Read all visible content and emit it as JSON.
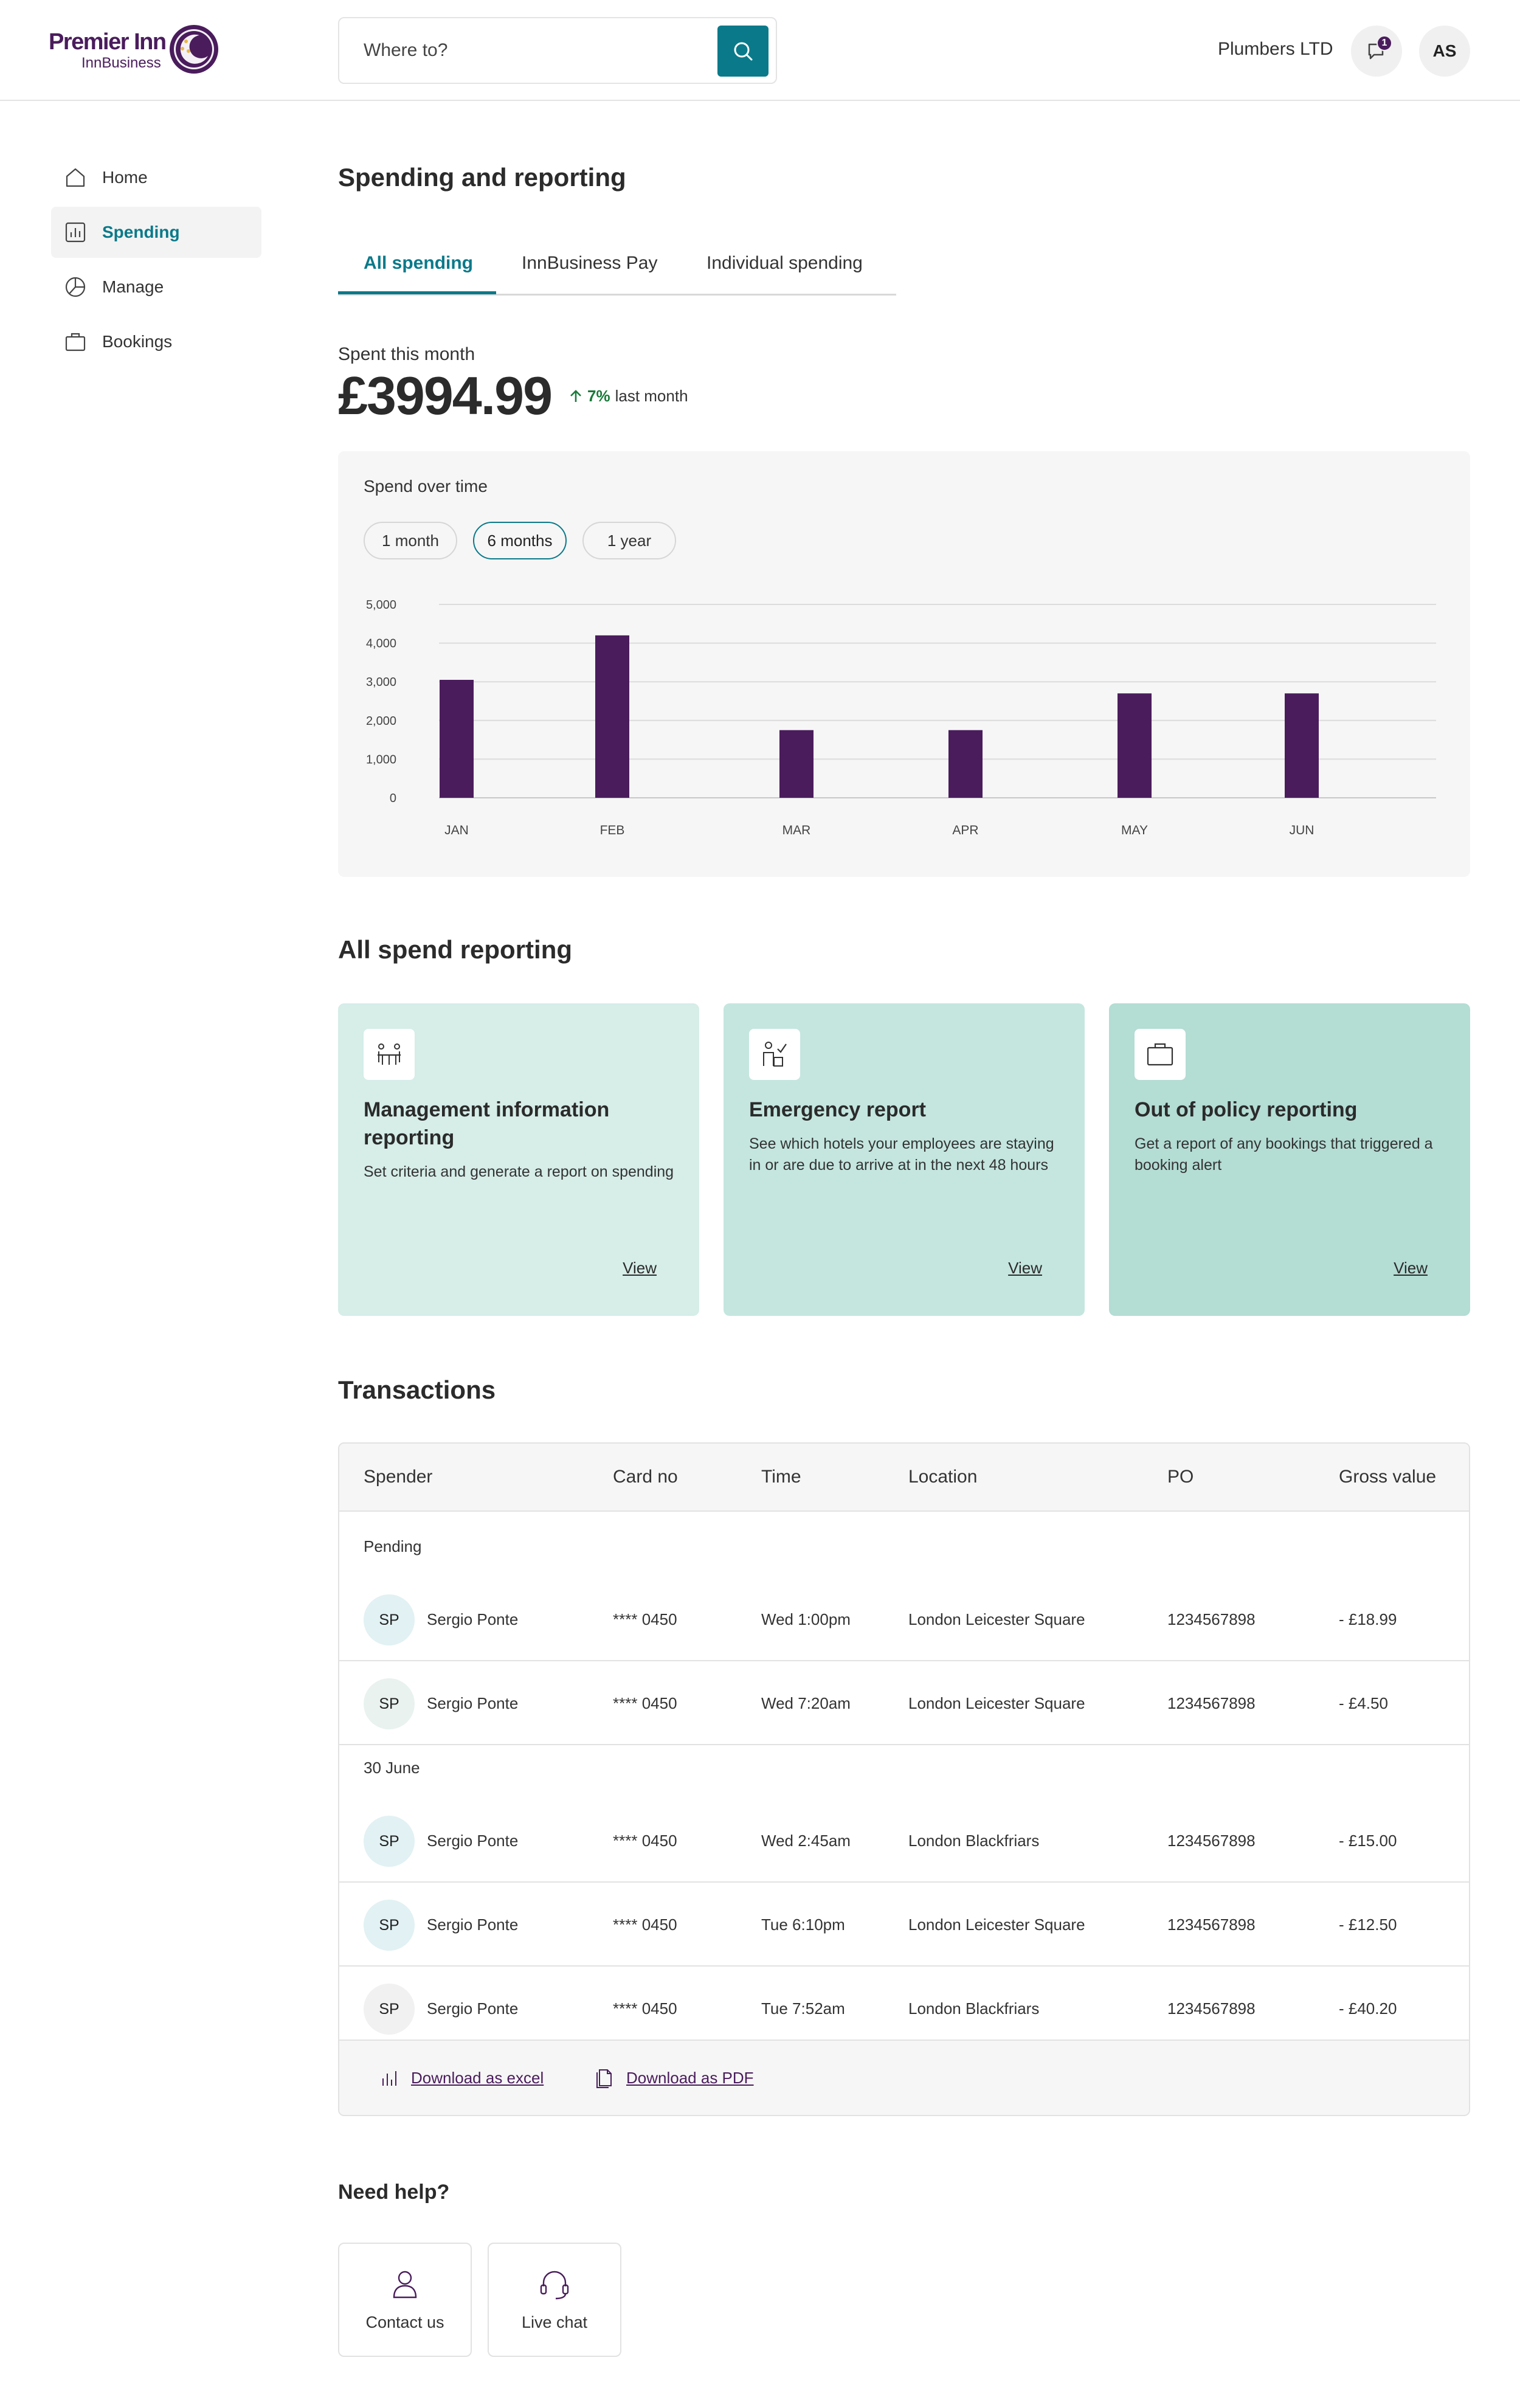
{
  "brand": {
    "name": "Premier Inn",
    "sub": "InnBusiness"
  },
  "search": {
    "placeholder": "Where to?"
  },
  "header": {
    "company": "Plumbers LTD",
    "message_count": "1",
    "user_initials": "AS"
  },
  "sidebar": {
    "items": [
      {
        "label": "Home",
        "icon": "home-icon"
      },
      {
        "label": "Spending",
        "icon": "bar-chart-icon",
        "active": true
      },
      {
        "label": "Manage",
        "icon": "pie-chart-icon"
      },
      {
        "label": "Bookings",
        "icon": "briefcase-icon"
      }
    ]
  },
  "page": {
    "title": "Spending and reporting"
  },
  "tabs": [
    {
      "label": "All spending",
      "active": true
    },
    {
      "label": "InnBusiness Pay"
    },
    {
      "label": "Individual spending"
    }
  ],
  "summary": {
    "label": "Spent this month",
    "amount": "£3994.99",
    "change_pct": "7%",
    "change_text": "last month"
  },
  "chart": {
    "title": "Spend over time",
    "ranges": [
      {
        "label": "1 month"
      },
      {
        "label": "6 months",
        "active": true
      },
      {
        "label": "1 year"
      }
    ],
    "bar_color": "#4a1c5c"
  },
  "chart_data": {
    "type": "bar",
    "title": "Spend over time",
    "categories": [
      "JAN",
      "FEB",
      "MAR",
      "APR",
      "MAY",
      "JUN"
    ],
    "values": [
      3050,
      4200,
      1750,
      1750,
      2700,
      2700
    ],
    "yticks": [
      "0",
      "1,000",
      "2,000",
      "3,000",
      "4,000",
      "5,000"
    ],
    "ylim": [
      0,
      5000
    ],
    "grid": true
  },
  "reporting": {
    "title": "All spend reporting",
    "cards": [
      {
        "title": "Management information reporting",
        "desc": "Set criteria and generate a report on spending",
        "link": "View",
        "color": "#d6ede8"
      },
      {
        "title": "Emergency report",
        "desc": "See which hotels your employees are staying in or are due to arrive at in the next 48 hours",
        "link": "View",
        "color": "#c4e6df"
      },
      {
        "title": "Out of policy reporting",
        "desc": "Get a report of any bookings that triggered a booking alert",
        "link": "View",
        "color": "#b4ddd4"
      }
    ]
  },
  "transactions": {
    "title": "Transactions",
    "columns": [
      "Spender",
      "Card no",
      "Time",
      "Location",
      "PO",
      "Gross value"
    ],
    "groups": [
      {
        "label": "Pending",
        "rows": [
          {
            "initials": "SP",
            "name": "Sergio Ponte",
            "card": "**** 0450",
            "time": "Wed 1:00pm",
            "location": "London Leicester Square",
            "po": "1234567898",
            "value": "- £18.99",
            "badge": "#e2f1f3"
          },
          {
            "initials": "SP",
            "name": "Sergio Ponte",
            "card": "**** 0450",
            "time": "Wed 7:20am",
            "location": "London Leicester Square",
            "po": "1234567898",
            "value": "- £4.50",
            "badge": "#e9f2ee"
          }
        ]
      },
      {
        "label": "30 June",
        "rows": [
          {
            "initials": "SP",
            "name": "Sergio Ponte",
            "card": "**** 0450",
            "time": "Wed 2:45am",
            "location": "London Blackfriars",
            "po": "1234567898",
            "value": "- £15.00",
            "badge": "#e2f1f3"
          },
          {
            "initials": "SP",
            "name": "Sergio Ponte",
            "card": "**** 0450",
            "time": "Tue 6:10pm",
            "location": "London Leicester Square",
            "po": "1234567898",
            "value": "- £12.50",
            "badge": "#e2f1f3"
          },
          {
            "initials": "SP",
            "name": "Sergio Ponte",
            "card": "**** 0450",
            "time": "Tue 7:52am",
            "location": "London Blackfriars",
            "po": "1234567898",
            "value": "- £40.20",
            "badge": "#f1f1f1"
          }
        ]
      }
    ],
    "downloads": {
      "excel": "Download as excel",
      "pdf": "Download as PDF"
    }
  },
  "help": {
    "title": "Need help?",
    "items": [
      {
        "label": "Contact us",
        "icon": "person-icon"
      },
      {
        "label": "Live chat",
        "icon": "headset-icon"
      }
    ]
  }
}
